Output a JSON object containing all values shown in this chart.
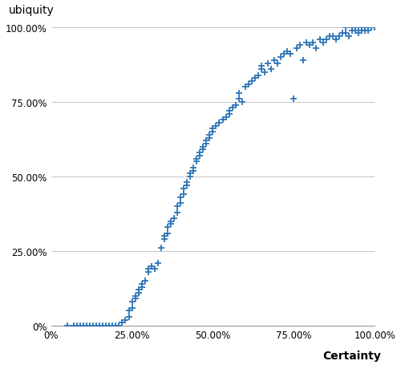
{
  "title": "ubiquity",
  "xlabel": "Certainty",
  "ylabel": "ubiquity",
  "marker": "+",
  "marker_color": "#2E75B6",
  "marker_size": 6,
  "marker_linewidth": 1.3,
  "xlim": [
    0,
    1.0
  ],
  "ylim": [
    0,
    1.0
  ],
  "x_ticks": [
    0,
    0.25,
    0.5,
    0.75,
    1.0
  ],
  "y_ticks": [
    0,
    0.25,
    0.5,
    0.75,
    1.0
  ],
  "x_tick_labels": [
    "0%",
    "25.00%",
    "50.00%",
    "75.00%",
    "100.00%"
  ],
  "y_tick_labels": [
    "0%",
    "25.00%",
    "50.00%",
    "75.00%",
    "100.00%"
  ],
  "grid_color": "#BBBBBB",
  "grid_linewidth": 0.6,
  "background_color": "#FFFFFF",
  "points": [
    [
      0.05,
      0.0
    ],
    [
      0.07,
      0.0
    ],
    [
      0.08,
      0.0
    ],
    [
      0.09,
      0.0
    ],
    [
      0.1,
      0.0
    ],
    [
      0.11,
      0.0
    ],
    [
      0.12,
      0.0
    ],
    [
      0.13,
      0.0
    ],
    [
      0.14,
      0.0
    ],
    [
      0.15,
      0.0
    ],
    [
      0.16,
      0.0
    ],
    [
      0.17,
      0.0
    ],
    [
      0.18,
      0.0
    ],
    [
      0.19,
      0.0
    ],
    [
      0.2,
      0.0
    ],
    [
      0.21,
      0.0
    ],
    [
      0.22,
      0.01
    ],
    [
      0.23,
      0.02
    ],
    [
      0.24,
      0.03
    ],
    [
      0.24,
      0.05
    ],
    [
      0.25,
      0.06
    ],
    [
      0.25,
      0.08
    ],
    [
      0.26,
      0.09
    ],
    [
      0.26,
      0.1
    ],
    [
      0.27,
      0.11
    ],
    [
      0.27,
      0.12
    ],
    [
      0.28,
      0.13
    ],
    [
      0.28,
      0.14
    ],
    [
      0.29,
      0.15
    ],
    [
      0.3,
      0.18
    ],
    [
      0.3,
      0.19
    ],
    [
      0.31,
      0.2
    ],
    [
      0.32,
      0.19
    ],
    [
      0.33,
      0.21
    ],
    [
      0.34,
      0.26
    ],
    [
      0.35,
      0.29
    ],
    [
      0.35,
      0.3
    ],
    [
      0.36,
      0.31
    ],
    [
      0.36,
      0.33
    ],
    [
      0.37,
      0.34
    ],
    [
      0.37,
      0.35
    ],
    [
      0.38,
      0.36
    ],
    [
      0.39,
      0.38
    ],
    [
      0.39,
      0.4
    ],
    [
      0.4,
      0.41
    ],
    [
      0.4,
      0.43
    ],
    [
      0.41,
      0.44
    ],
    [
      0.41,
      0.46
    ],
    [
      0.42,
      0.47
    ],
    [
      0.42,
      0.48
    ],
    [
      0.43,
      0.5
    ],
    [
      0.43,
      0.51
    ],
    [
      0.44,
      0.52
    ],
    [
      0.44,
      0.53
    ],
    [
      0.45,
      0.55
    ],
    [
      0.45,
      0.56
    ],
    [
      0.46,
      0.57
    ],
    [
      0.46,
      0.58
    ],
    [
      0.47,
      0.59
    ],
    [
      0.47,
      0.6
    ],
    [
      0.48,
      0.61
    ],
    [
      0.48,
      0.62
    ],
    [
      0.49,
      0.63
    ],
    [
      0.49,
      0.64
    ],
    [
      0.5,
      0.65
    ],
    [
      0.5,
      0.66
    ],
    [
      0.51,
      0.67
    ],
    [
      0.52,
      0.68
    ],
    [
      0.53,
      0.69
    ],
    [
      0.54,
      0.7
    ],
    [
      0.55,
      0.71
    ],
    [
      0.55,
      0.72
    ],
    [
      0.56,
      0.73
    ],
    [
      0.57,
      0.74
    ],
    [
      0.58,
      0.76
    ],
    [
      0.58,
      0.78
    ],
    [
      0.59,
      0.75
    ],
    [
      0.6,
      0.8
    ],
    [
      0.61,
      0.81
    ],
    [
      0.62,
      0.82
    ],
    [
      0.63,
      0.83
    ],
    [
      0.64,
      0.84
    ],
    [
      0.65,
      0.86
    ],
    [
      0.65,
      0.87
    ],
    [
      0.66,
      0.85
    ],
    [
      0.67,
      0.88
    ],
    [
      0.68,
      0.86
    ],
    [
      0.69,
      0.89
    ],
    [
      0.7,
      0.88
    ],
    [
      0.71,
      0.9
    ],
    [
      0.72,
      0.91
    ],
    [
      0.73,
      0.92
    ],
    [
      0.74,
      0.91
    ],
    [
      0.75,
      0.76
    ],
    [
      0.76,
      0.93
    ],
    [
      0.77,
      0.94
    ],
    [
      0.78,
      0.89
    ],
    [
      0.79,
      0.95
    ],
    [
      0.8,
      0.94
    ],
    [
      0.81,
      0.95
    ],
    [
      0.82,
      0.93
    ],
    [
      0.83,
      0.96
    ],
    [
      0.84,
      0.95
    ],
    [
      0.85,
      0.96
    ],
    [
      0.86,
      0.97
    ],
    [
      0.87,
      0.97
    ],
    [
      0.88,
      0.96
    ],
    [
      0.89,
      0.97
    ],
    [
      0.9,
      0.98
    ],
    [
      0.91,
      0.98
    ],
    [
      0.92,
      0.97
    ],
    [
      0.93,
      0.99
    ],
    [
      0.94,
      0.99
    ],
    [
      0.95,
      0.98
    ],
    [
      0.96,
      1.0
    ],
    [
      0.97,
      1.0
    ],
    [
      0.98,
      1.0
    ],
    [
      0.99,
      1.0
    ],
    [
      1.0,
      1.0
    ],
    [
      0.97,
      0.99
    ],
    [
      0.98,
      0.99
    ],
    [
      0.96,
      0.99
    ],
    [
      0.95,
      1.0
    ],
    [
      0.93,
      1.0
    ],
    [
      0.91,
      1.0
    ]
  ]
}
